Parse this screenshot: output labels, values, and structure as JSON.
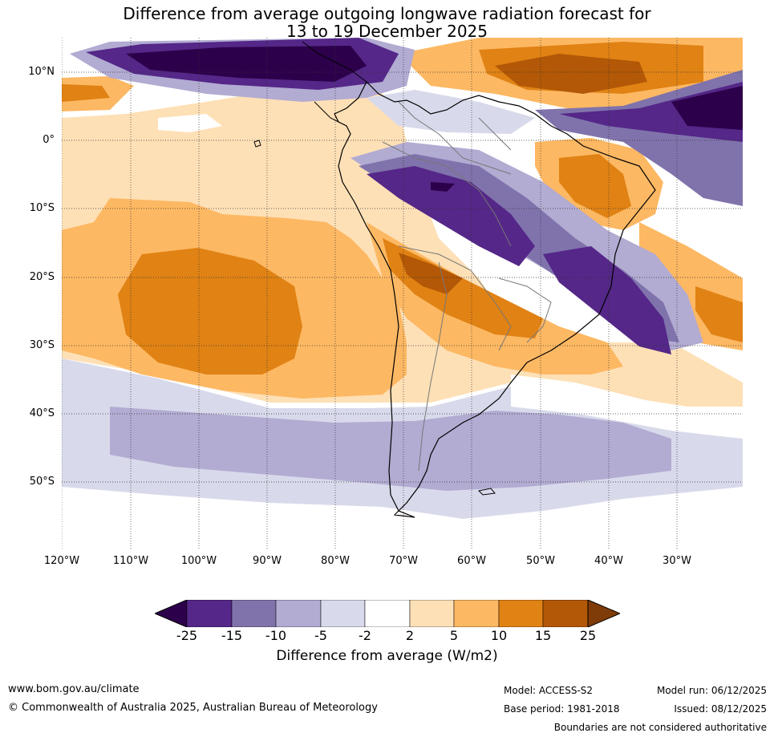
{
  "title": {
    "line1": "Difference from average outgoing longwave radiation forecast for",
    "line2": "13 to 19 December 2025"
  },
  "map": {
    "region": "South America",
    "lat_labels": [
      "10°N",
      "0°",
      "10°S",
      "20°S",
      "30°S",
      "40°S",
      "50°S"
    ],
    "lon_labels": [
      "120°W",
      "110°W",
      "100°W",
      "90°W",
      "80°W",
      "70°W",
      "60°W",
      "50°W",
      "40°W",
      "30°W"
    ]
  },
  "colorbar": {
    "ticks": [
      "-25",
      "-15",
      "-10",
      "-5",
      "-2",
      "2",
      "5",
      "10",
      "15",
      "25"
    ],
    "colors": [
      "#2d004b",
      "#542788",
      "#8073ac",
      "#b2abd2",
      "#d8daeb",
      "#ffffff",
      "#fee0b6",
      "#fdb863",
      "#e08214",
      "#b35806",
      "#7f3b08"
    ],
    "label": "Difference from average (W/m2)"
  },
  "footer": {
    "url": "www.bom.gov.au/climate",
    "copyright": "© Commonwealth of Australia 2025, Australian Bureau of Meteorology",
    "model": "Model: ACCESS-S2",
    "base_period": "Base period: 1981-2018",
    "model_run": "Model run: 06/12/2025",
    "issued": "Issued: 08/12/2025",
    "disclaimer": "Boundaries are not considered authoritative"
  }
}
